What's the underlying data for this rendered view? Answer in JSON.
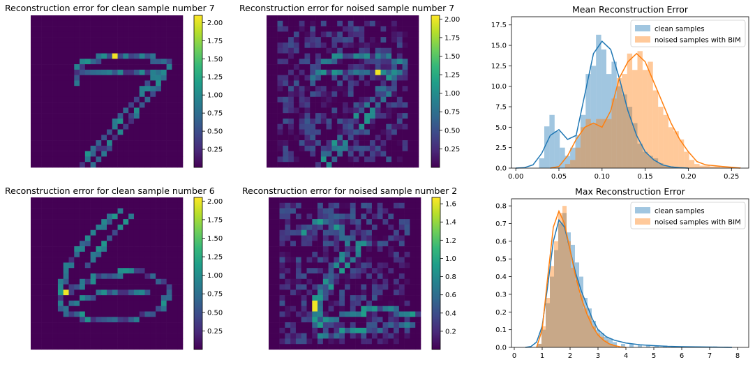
{
  "chart_data": [
    {
      "type": "heatmap",
      "title": "Reconstruction error for clean sample number 7",
      "colorbar_ticks": [
        "0.25",
        "0.50",
        "0.75",
        "1.00",
        "1.25",
        "1.50",
        "1.75",
        "2.00"
      ],
      "colorbar_tick_values": [
        0.25,
        0.5,
        0.75,
        1.0,
        1.25,
        1.5,
        1.75,
        2.0
      ],
      "colorbar_range": [
        0.0,
        2.1
      ],
      "colormap": [
        "#440154",
        "#482878",
        "#3e4989",
        "#31688e",
        "#26828e",
        "#1f9e89",
        "#35b779",
        "#6ece58",
        "#b5de2b",
        "#fde725"
      ],
      "grid_size": 28,
      "digit": "7"
    },
    {
      "type": "heatmap",
      "title": "Reconstruction error for noised sample number 7",
      "colorbar_ticks": [
        "0.25",
        "0.50",
        "0.75",
        "1.00",
        "1.25",
        "1.50",
        "1.75",
        "2.00"
      ],
      "colorbar_tick_values": [
        0.25,
        0.5,
        0.75,
        1.0,
        1.25,
        1.5,
        1.75,
        2.0
      ],
      "colorbar_range": [
        0.0,
        2.05
      ],
      "colormap": [
        "#440154",
        "#482878",
        "#3e4989",
        "#31688e",
        "#26828e",
        "#1f9e89",
        "#35b779",
        "#6ece58",
        "#b5de2b",
        "#fde725"
      ],
      "grid_size": 28,
      "digit": "7"
    },
    {
      "type": "bar",
      "title": "Mean Reconstruction Error",
      "x_ticks": [
        "0.00",
        "0.05",
        "0.10",
        "0.15",
        "0.20",
        "0.25"
      ],
      "x_tick_values": [
        0.0,
        0.05,
        0.1,
        0.15,
        0.2,
        0.25
      ],
      "y_ticks": [
        "0.0",
        "2.5",
        "5.0",
        "7.5",
        "10.0",
        "12.5",
        "15.0",
        "17.5"
      ],
      "y_tick_values": [
        0,
        2.5,
        5,
        7.5,
        10,
        12.5,
        15,
        17.5
      ],
      "xlim": [
        -0.005,
        0.27
      ],
      "ylim": [
        0,
        18.5
      ],
      "legend_placement": "top-right",
      "series": [
        {
          "name": "clean samples",
          "color": "#1f77b4",
          "hist_x": [
            0.03,
            0.036,
            0.042,
            0.048,
            0.054,
            0.06,
            0.066,
            0.072,
            0.078,
            0.084,
            0.09,
            0.096,
            0.102,
            0.108,
            0.114,
            0.12,
            0.126,
            0.132,
            0.138,
            0.144,
            0.15,
            0.156,
            0.162,
            0.168,
            0.174,
            0.18
          ],
          "hist_y": [
            1.2,
            5.1,
            6.5,
            4.5,
            2.5,
            1.5,
            2.5,
            4.0,
            6.5,
            11.5,
            12.5,
            16.3,
            14.5,
            11.5,
            13.0,
            10.0,
            9.0,
            7.5,
            5.5,
            3.0,
            2.0,
            1.5,
            1.2,
            0.6,
            0.3,
            0.2
          ],
          "kde_x": [
            0.0,
            0.01,
            0.02,
            0.03,
            0.04,
            0.05,
            0.06,
            0.07,
            0.08,
            0.09,
            0.1,
            0.11,
            0.12,
            0.13,
            0.14,
            0.15,
            0.16,
            0.17,
            0.18,
            0.19,
            0.2
          ],
          "kde_y": [
            0.0,
            0.05,
            0.4,
            1.8,
            4.0,
            4.7,
            3.5,
            4.0,
            9.0,
            14.0,
            15.5,
            14.5,
            11.0,
            7.0,
            4.0,
            2.0,
            1.0,
            0.4,
            0.15,
            0.05,
            0.0
          ]
        },
        {
          "name": "noised samples with BIM",
          "color": "#ff7f0e",
          "hist_x": [
            0.06,
            0.066,
            0.072,
            0.078,
            0.084,
            0.09,
            0.096,
            0.102,
            0.108,
            0.114,
            0.12,
            0.126,
            0.132,
            0.138,
            0.144,
            0.15,
            0.156,
            0.162,
            0.168,
            0.174,
            0.18,
            0.186,
            0.192,
            0.198,
            0.204,
            0.21,
            0.216,
            0.222,
            0.228,
            0.234,
            0.24,
            0.246,
            0.252,
            0.258
          ],
          "hist_y": [
            0.5,
            1.0,
            2.5,
            5.0,
            6.0,
            5.5,
            6.0,
            6.0,
            6.0,
            8.5,
            11.0,
            11.5,
            14.0,
            12.0,
            14.3,
            12.0,
            13.0,
            9.5,
            7.5,
            6.5,
            5.0,
            4.5,
            3.5,
            2.0,
            1.0,
            0.5,
            0.3,
            0.3,
            0.2,
            0.2,
            0.1,
            0.1,
            0.1,
            0.1
          ],
          "kde_x": [
            0.04,
            0.05,
            0.06,
            0.07,
            0.08,
            0.09,
            0.1,
            0.11,
            0.12,
            0.13,
            0.14,
            0.15,
            0.16,
            0.17,
            0.18,
            0.19,
            0.2,
            0.21,
            0.22,
            0.23,
            0.24,
            0.25,
            0.26
          ],
          "kde_y": [
            0.0,
            0.2,
            1.5,
            3.5,
            5.0,
            5.5,
            5.0,
            7.0,
            11.0,
            13.0,
            14.0,
            13.0,
            10.5,
            8.0,
            5.5,
            3.5,
            2.0,
            0.8,
            0.4,
            0.3,
            0.2,
            0.1,
            0.0
          ]
        }
      ]
    },
    {
      "type": "heatmap",
      "title": "Reconstruction error for clean sample number 6",
      "colorbar_ticks": [
        "0.25",
        "0.50",
        "0.75",
        "1.00",
        "1.25",
        "1.50",
        "1.75",
        "2.00"
      ],
      "colorbar_tick_values": [
        0.25,
        0.5,
        0.75,
        1.0,
        1.25,
        1.5,
        1.75,
        2.0
      ],
      "colorbar_range": [
        0.0,
        2.05
      ],
      "colormap": [
        "#440154",
        "#482878",
        "#3e4989",
        "#31688e",
        "#26828e",
        "#1f9e89",
        "#35b779",
        "#6ece58",
        "#b5de2b",
        "#fde725"
      ],
      "grid_size": 28,
      "digit": "6"
    },
    {
      "type": "heatmap",
      "title": "Reconstruction error for noised sample number 2",
      "colorbar_ticks": [
        "0.2",
        "0.4",
        "0.6",
        "0.8",
        "1.0",
        "1.2",
        "1.4",
        "1.6"
      ],
      "colorbar_tick_values": [
        0.2,
        0.4,
        0.6,
        0.8,
        1.0,
        1.2,
        1.4,
        1.6
      ],
      "colorbar_range": [
        0.0,
        1.67
      ],
      "colormap": [
        "#440154",
        "#482878",
        "#3e4989",
        "#31688e",
        "#26828e",
        "#1f9e89",
        "#35b779",
        "#6ece58",
        "#b5de2b",
        "#fde725"
      ],
      "grid_size": 28,
      "digit": "2"
    },
    {
      "type": "bar",
      "title": "Max Reconstruction Error",
      "x_ticks": [
        "0",
        "1",
        "2",
        "3",
        "4",
        "5",
        "6",
        "7",
        "8"
      ],
      "x_tick_values": [
        0,
        1,
        2,
        3,
        4,
        5,
        6,
        7,
        8
      ],
      "y_ticks": [
        "0.0",
        "0.1",
        "0.2",
        "0.3",
        "0.4",
        "0.5",
        "0.6",
        "0.7",
        "0.8"
      ],
      "y_tick_values": [
        0,
        0.1,
        0.2,
        0.3,
        0.4,
        0.5,
        0.6,
        0.7,
        0.8
      ],
      "xlim": [
        -0.1,
        8.4
      ],
      "ylim": [
        0,
        0.84
      ],
      "legend_placement": "top-right",
      "series": [
        {
          "name": "clean samples",
          "color": "#1f77b4",
          "hist_x": [
            0.9,
            1.05,
            1.2,
            1.35,
            1.5,
            1.65,
            1.8,
            1.95,
            2.1,
            2.25,
            2.4,
            2.55,
            2.7,
            2.85,
            3.0,
            3.15,
            3.3,
            3.45,
            3.6,
            3.9,
            4.2,
            4.5,
            4.8,
            5.1,
            5.4,
            5.7,
            6.0,
            6.6,
            7.2,
            7.6
          ],
          "hist_y": [
            0.02,
            0.1,
            0.25,
            0.4,
            0.55,
            0.7,
            0.76,
            0.65,
            0.58,
            0.48,
            0.4,
            0.28,
            0.22,
            0.15,
            0.1,
            0.08,
            0.06,
            0.05,
            0.03,
            0.02,
            0.02,
            0.015,
            0.015,
            0.01,
            0.01,
            0.008,
            0.006,
            0.005,
            0.005,
            0.004
          ],
          "kde_x": [
            0.4,
            0.6,
            0.8,
            1.0,
            1.2,
            1.4,
            1.6,
            1.8,
            2.0,
            2.2,
            2.4,
            2.6,
            2.8,
            3.0,
            3.3,
            3.6,
            4.0,
            4.5,
            5.0,
            5.5,
            6.0,
            7.0,
            7.8
          ],
          "kde_y": [
            0.0,
            0.005,
            0.03,
            0.12,
            0.35,
            0.6,
            0.72,
            0.68,
            0.55,
            0.42,
            0.32,
            0.24,
            0.16,
            0.1,
            0.06,
            0.04,
            0.025,
            0.015,
            0.01,
            0.006,
            0.004,
            0.002,
            0.0
          ]
        },
        {
          "name": "noised samples with BIM",
          "color": "#ff7f0e",
          "hist_x": [
            0.9,
            1.05,
            1.2,
            1.35,
            1.5,
            1.65,
            1.8,
            1.95,
            2.1,
            2.25,
            2.4,
            2.55,
            2.7,
            2.85,
            3.0,
            3.15,
            3.3,
            3.45,
            3.6
          ],
          "hist_y": [
            0.02,
            0.12,
            0.28,
            0.46,
            0.6,
            0.76,
            0.8,
            0.6,
            0.45,
            0.38,
            0.3,
            0.22,
            0.18,
            0.12,
            0.08,
            0.06,
            0.04,
            0.02,
            0.01
          ],
          "kde_x": [
            0.8,
            1.0,
            1.2,
            1.4,
            1.6,
            1.8,
            2.0,
            2.2,
            2.4,
            2.6,
            2.8,
            3.0,
            3.2,
            3.4,
            3.6,
            3.8,
            4.0
          ],
          "kde_y": [
            0.0,
            0.1,
            0.4,
            0.68,
            0.77,
            0.7,
            0.55,
            0.4,
            0.28,
            0.19,
            0.12,
            0.07,
            0.04,
            0.02,
            0.01,
            0.003,
            0.0
          ]
        }
      ]
    }
  ]
}
